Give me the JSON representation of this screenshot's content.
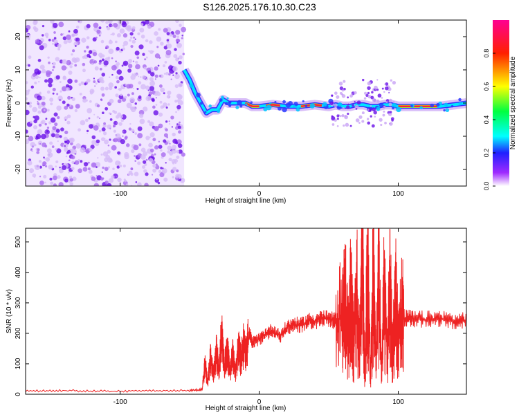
{
  "title": "S126.2025.176.10.30.C23",
  "chart_data": [
    {
      "type": "heatmap",
      "xlabel": "Height of straight line (km)",
      "ylabel": "Frequency (Hz)",
      "xlim": [
        -168,
        149
      ],
      "ylim": [
        -25,
        25
      ],
      "xticks": [
        -100,
        0,
        100
      ],
      "yticks": [
        -20,
        -10,
        0,
        10,
        20
      ],
      "noise_region_x": [
        -168,
        -54
      ],
      "signal_track": {
        "x": [
          -54,
          -50,
          -46,
          -42,
          -38,
          -34,
          -30,
          -26,
          -22,
          -18,
          -14,
          -10,
          -5,
          0,
          10,
          20,
          30,
          40,
          50,
          55,
          60,
          65,
          70,
          75,
          80,
          85,
          90,
          95,
          100,
          110,
          120,
          130,
          140,
          149
        ],
        "y": [
          10,
          7,
          3,
          0,
          -3,
          -2,
          -2,
          1,
          0,
          0,
          0,
          0,
          -1,
          -1,
          -0.5,
          -1,
          -1,
          -0.5,
          -1,
          -0.5,
          -1,
          -1,
          -0.5,
          -0.5,
          -1,
          -1,
          -0.5,
          -0.5,
          -1,
          -1,
          -1,
          -1,
          -0.5,
          0
        ]
      },
      "colorbar": {
        "label": "Normalized spectral amplitude",
        "range": [
          0,
          1
        ],
        "ticks": [
          "0.0",
          "0.2",
          "0.4",
          "0.6",
          "0.8"
        ]
      }
    },
    {
      "type": "line",
      "xlabel": "Height of straight line (km)",
      "ylabel": "SNR (10 * v/v)",
      "xlim": [
        -168,
        149
      ],
      "ylim": [
        0,
        545
      ],
      "xticks": [
        -100,
        0,
        100
      ],
      "yticks": [
        0,
        100,
        200,
        300,
        400,
        500
      ],
      "series": [
        {
          "color": "#ee2222",
          "x": [
            -168,
            -140,
            -110,
            -80,
            -50,
            -41,
            -39,
            -37,
            -35,
            -33,
            -31,
            -29,
            -27,
            -25,
            -23,
            -21,
            -19,
            -17,
            -15,
            -13,
            -11,
            -9,
            -7,
            -5,
            0,
            5,
            10,
            15,
            20,
            25,
            30,
            35,
            40,
            45,
            50,
            55,
            60,
            62,
            64,
            66,
            68,
            70,
            72,
            74,
            76,
            78,
            80,
            82,
            84,
            86,
            88,
            90,
            92,
            94,
            96,
            98,
            100,
            102,
            104,
            110,
            120,
            130,
            140,
            149
          ],
          "y": [
            10,
            12,
            10,
            11,
            12,
            15,
            100,
            40,
            120,
            60,
            140,
            80,
            200,
            90,
            150,
            70,
            130,
            60,
            150,
            110,
            170,
            140,
            200,
            170,
            180,
            200,
            210,
            190,
            220,
            230,
            225,
            240,
            240,
            250,
            245,
            240,
            250,
            300,
            180,
            320,
            150,
            350,
            120,
            540,
            80,
            420,
            60,
            400,
            90,
            380,
            70,
            350,
            120,
            320,
            150,
            300,
            180,
            260,
            250,
            248,
            245,
            250,
            240,
            245
          ]
        }
      ]
    }
  ]
}
